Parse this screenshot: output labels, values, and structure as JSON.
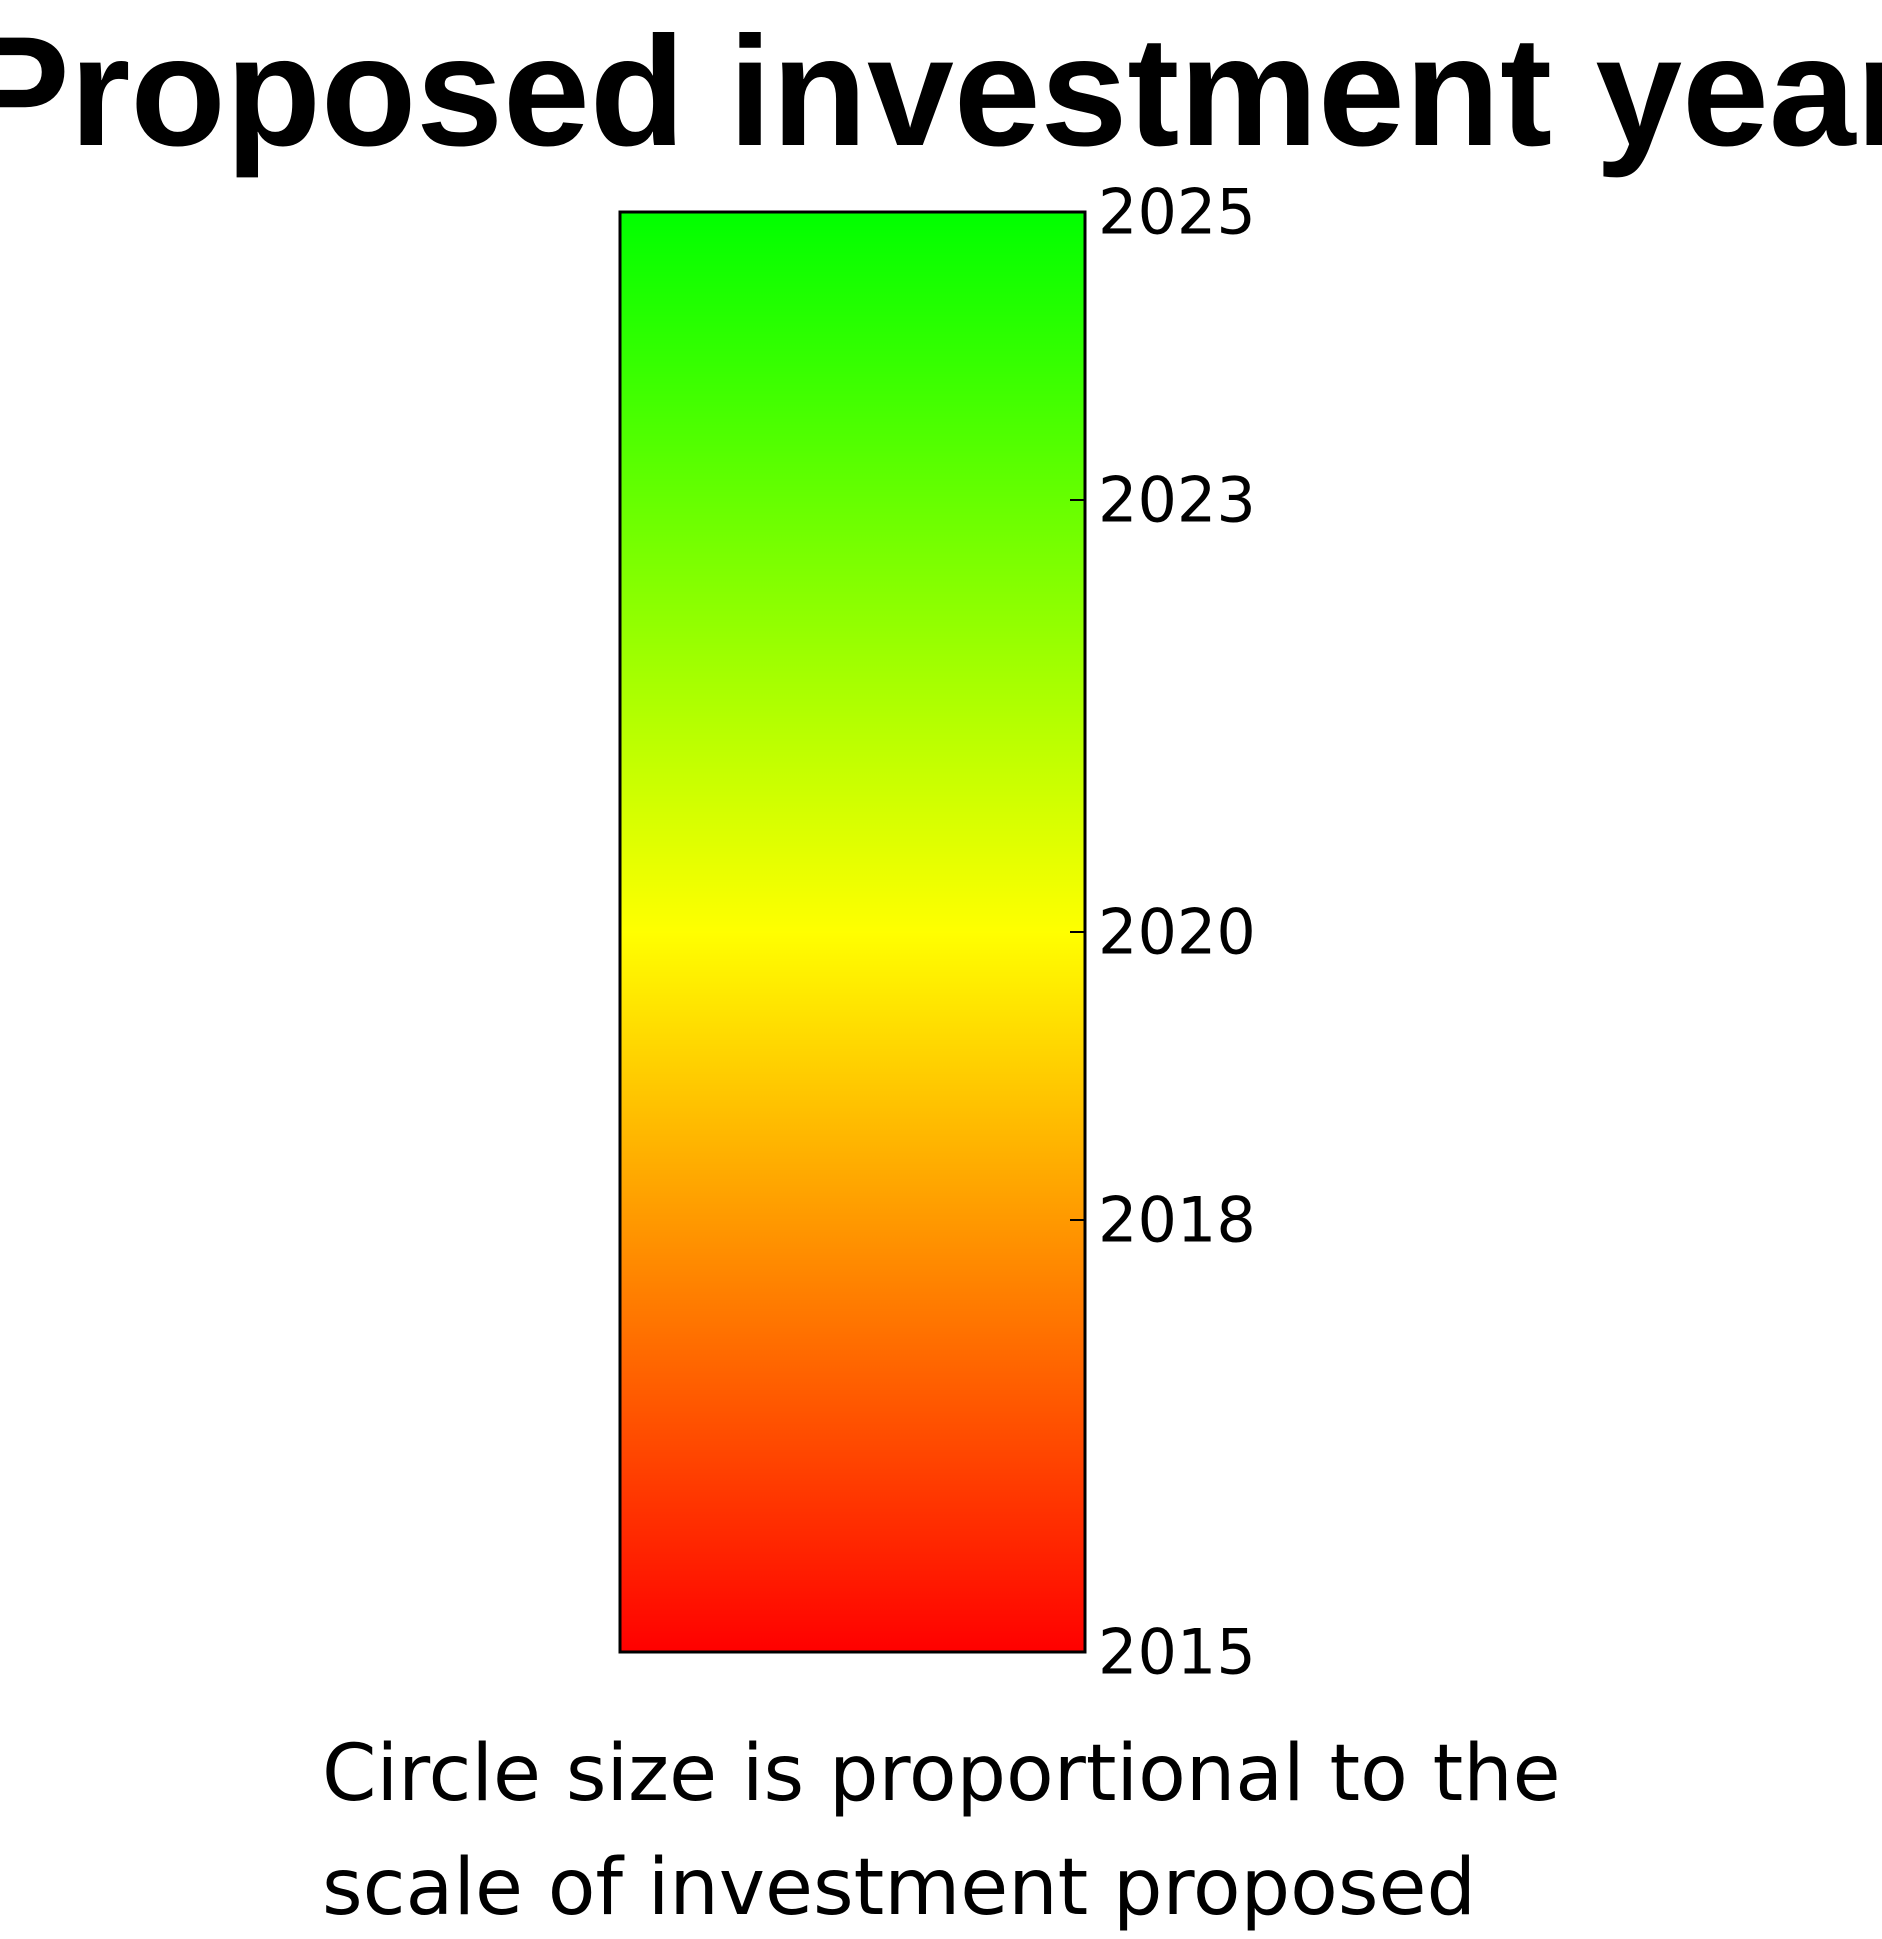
{
  "chart_data": {
    "type": "colorbar",
    "title": "Proposed investment year",
    "ticks": [
      {
        "value": 2015,
        "label": "2015"
      },
      {
        "value": 2018,
        "label": "2018"
      },
      {
        "value": 2020,
        "label": "2020"
      },
      {
        "value": 2023,
        "label": "2023"
      },
      {
        "value": 2025,
        "label": "2025"
      }
    ],
    "range": [
      2015,
      2025
    ],
    "colorscale": [
      {
        "value": 2015,
        "color": "#ff0000"
      },
      {
        "value": 2020,
        "color": "#ffff00"
      },
      {
        "value": 2025,
        "color": "#00ff00"
      }
    ],
    "caption": [
      "Circle size is proportional to the",
      "scale of investment proposed"
    ]
  }
}
